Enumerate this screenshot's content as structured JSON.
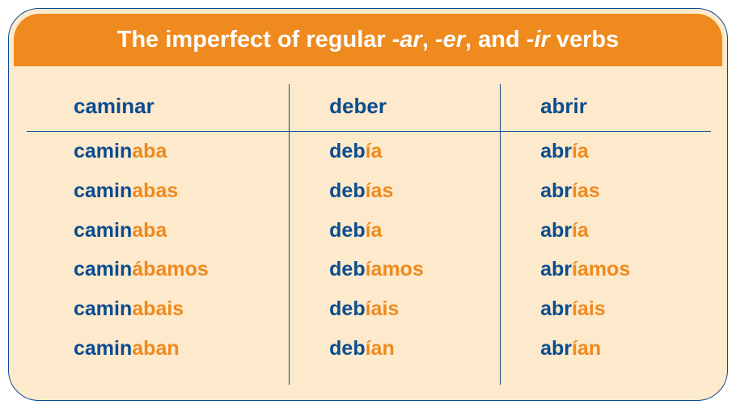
{
  "colors": {
    "card_bg": "#fde9cb",
    "header_bg": "#ee8a1e",
    "border": "#0a4c90",
    "stem": "#0a4c90",
    "ending": "#ee8a1e",
    "title_text": "#ffffff"
  },
  "title": {
    "pre": "The imperfect of regular ",
    "ar": "-ar",
    "sep1": ", ",
    "er": "-er",
    "sep2": ", and ",
    "ir": "-ir",
    "post": " verbs"
  },
  "table": {
    "type": "table",
    "columns": [
      {
        "header": "caminar"
      },
      {
        "header": "deber"
      },
      {
        "header": "abrir"
      }
    ],
    "rows": [
      [
        {
          "stem": "camin",
          "ending": "aba"
        },
        {
          "stem": "deb",
          "ending": "ía"
        },
        {
          "stem": "abr",
          "ending": "ía"
        }
      ],
      [
        {
          "stem": "camin",
          "ending": "abas"
        },
        {
          "stem": "deb",
          "ending": "ías"
        },
        {
          "stem": "abr",
          "ending": "ías"
        }
      ],
      [
        {
          "stem": "camin",
          "ending": "aba"
        },
        {
          "stem": "deb",
          "ending": "ía"
        },
        {
          "stem": "abr",
          "ending": "ía"
        }
      ],
      [
        {
          "stem": "camin",
          "ending": "ábamos"
        },
        {
          "stem": "deb",
          "ending": "íamos"
        },
        {
          "stem": "abr",
          "ending": "íamos"
        }
      ],
      [
        {
          "stem": "camin",
          "ending": "abais"
        },
        {
          "stem": "deb",
          "ending": "íais"
        },
        {
          "stem": "abr",
          "ending": "íais"
        }
      ],
      [
        {
          "stem": "camin",
          "ending": "aban"
        },
        {
          "stem": "deb",
          "ending": "ían"
        },
        {
          "stem": "abr",
          "ending": "ían"
        }
      ]
    ],
    "layout": {
      "col_fractions": [
        1.25,
        1,
        1
      ],
      "header_fontsize": 26,
      "cell_fontsize": 25,
      "title_fontsize": 29,
      "border_radius": 38
    }
  }
}
